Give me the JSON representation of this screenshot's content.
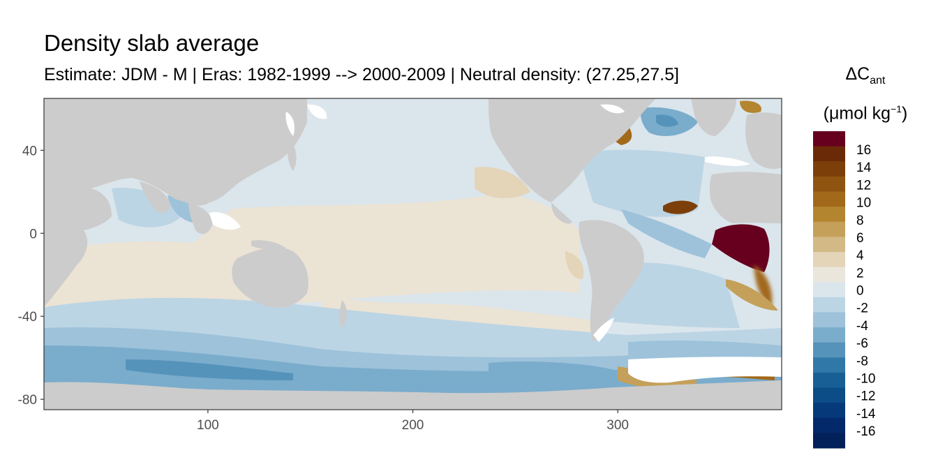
{
  "chart_data": {
    "type": "heatmap",
    "title": "Density slab average",
    "subtitle": "Estimate: JDM - M | Eras: 1982-1999 --> 2000-2009 | Neutral density: (27.25,27.5]",
    "legend": {
      "title_symbol": "ΔC",
      "title_subscript": "ant",
      "unit_prefix": "(μmol kg",
      "unit_superscript": "−1",
      "unit_suffix": ")",
      "tick_labels": [
        "16",
        "14",
        "12",
        "10",
        "8",
        "6",
        "4",
        "2",
        "0",
        "-2",
        "-4",
        "-6",
        "-8",
        "-10",
        "-12",
        "-14",
        "-16"
      ],
      "colors": [
        "#67001f",
        "#6b2a07",
        "#7d3f0a",
        "#905411",
        "#a2691a",
        "#b4852f",
        "#c4a05a",
        "#d2b986",
        "#e4d4b8",
        "#ebe6dc",
        "#dbe5ec",
        "#bcd5e5",
        "#9dc2da",
        "#7aaccc",
        "#5593bb",
        "#2f78a8",
        "#185f96",
        "#0c4c87",
        "#05397a",
        "#04296a",
        "#022059"
      ],
      "position": "right"
    },
    "x_axis": {
      "ticks": [
        100,
        200,
        300
      ],
      "range": [
        20,
        380
      ]
    },
    "y_axis": {
      "ticks": [
        40,
        0,
        -40,
        -80
      ],
      "range": [
        -85,
        65
      ]
    },
    "land_color": "#cccccc",
    "missing_color": "#ffffff",
    "grid": false
  }
}
